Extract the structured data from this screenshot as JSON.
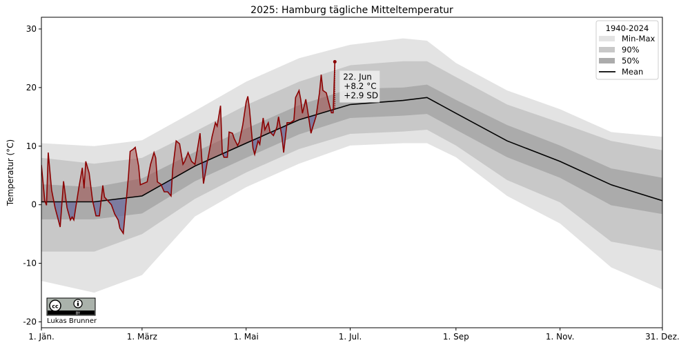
{
  "chart_data": {
    "type": "area",
    "title": "2025: Hamburg tägliche Mitteltemperatur",
    "xlabel": "",
    "ylabel": "Temperatur (°C)",
    "year": 2025,
    "ylim": [
      -21,
      32
    ],
    "yticks": [
      -20,
      -10,
      0,
      10,
      20,
      30
    ],
    "xticks": [
      {
        "date": "01-01",
        "label": "1. Jän."
      },
      {
        "date": "03-01",
        "label": "1. März"
      },
      {
        "date": "05-01",
        "label": "1. Mai"
      },
      {
        "date": "07-01",
        "label": "1. Jul."
      },
      {
        "date": "09-01",
        "label": "1. Sep"
      },
      {
        "date": "11-01",
        "label": "1. Nov."
      },
      {
        "date": "12-31",
        "label": "31. Dez."
      }
    ],
    "grid": false,
    "legend": {
      "title": "1940-2024",
      "placement": "top-right",
      "entries": [
        {
          "label": "Min-Max",
          "color": "#e3e3e3"
        },
        {
          "label": "90%",
          "color": "#c8c8c8"
        },
        {
          "label": "50%",
          "color": "#ababab"
        },
        {
          "label": "Mean",
          "color": "#000000"
        }
      ]
    },
    "climatology": {
      "dates": [
        "01-01",
        "02-01",
        "03-01",
        "04-01",
        "05-01",
        "06-01",
        "07-01",
        "08-01",
        "08-15",
        "09-01",
        "10-01",
        "11-01",
        "12-01",
        "12-31"
      ],
      "mean": [
        0.5,
        0.5,
        1.5,
        6.6,
        10.5,
        14.5,
        17.1,
        17.8,
        18.3,
        15.6,
        10.9,
        7.4,
        3.4,
        0.7
      ],
      "p25": [
        -2.5,
        -2.5,
        -1.5,
        4.0,
        8.0,
        12.0,
        14.8,
        15.2,
        15.5,
        12.8,
        8.1,
        4.6,
        -0.1,
        -1.6
      ],
      "p75": [
        3.5,
        3.0,
        4.5,
        9.0,
        13.0,
        17.0,
        19.8,
        20.0,
        20.5,
        17.9,
        13.6,
        10.1,
        6.2,
        4.6
      ],
      "p05": [
        -8.0,
        -8.0,
        -5.0,
        1.0,
        5.5,
        9.5,
        12.1,
        12.5,
        12.8,
        10.1,
        4.2,
        0.4,
        -6.3,
        -7.9
      ],
      "p95": [
        8.0,
        7.0,
        8.0,
        12.5,
        17.0,
        21.0,
        23.8,
        24.5,
        24.5,
        21.8,
        17.1,
        14.0,
        10.9,
        9.3
      ],
      "min": [
        -13.0,
        -15.0,
        -12.0,
        -2.0,
        3.0,
        7.0,
        10.1,
        10.5,
        10.5,
        8.1,
        1.5,
        -3.2,
        -10.7,
        -14.5
      ],
      "max": [
        10.5,
        10.0,
        11.0,
        16.0,
        21.0,
        25.0,
        27.3,
        28.4,
        28.0,
        24.2,
        19.5,
        16.3,
        12.4,
        11.6
      ]
    },
    "observed": {
      "color": "#8b0000",
      "above_mean_fill": "#a0504f",
      "below_mean_fill": "#6c6c9c",
      "dates": [
        "01-01",
        "01-03",
        "01-04",
        "01-05",
        "01-07",
        "01-09",
        "01-12",
        "01-14",
        "01-16",
        "01-18",
        "01-19",
        "01-20",
        "01-23",
        "01-25",
        "01-26",
        "01-27",
        "01-29",
        "01-31",
        "02-02",
        "02-04",
        "02-06",
        "02-07",
        "02-11",
        "02-13",
        "02-15",
        "02-16",
        "02-18",
        "02-21",
        "02-22",
        "02-24",
        "02-25",
        "02-27",
        "02-28",
        "03-04",
        "03-06",
        "03-08",
        "03-09",
        "03-10",
        "03-12",
        "03-14",
        "03-16",
        "03-18",
        "03-19",
        "03-21",
        "03-23",
        "03-25",
        "03-26",
        "03-28",
        "03-30",
        "04-01",
        "04-04",
        "04-06",
        "04-08",
        "04-11",
        "04-13",
        "04-14",
        "04-16",
        "04-17",
        "04-18",
        "04-20",
        "04-21",
        "04-23",
        "04-24",
        "04-26",
        "04-27",
        "04-29",
        "05-01",
        "05-02",
        "05-03",
        "05-05",
        "05-06",
        "05-08",
        "05-09",
        "05-11",
        "05-12",
        "05-14",
        "05-15",
        "05-17",
        "05-19",
        "05-20",
        "05-22",
        "05-23",
        "05-25",
        "05-27",
        "05-29",
        "05-30",
        "06-01",
        "06-02",
        "06-03",
        "06-05",
        "06-06",
        "06-08",
        "06-09",
        "06-11",
        "06-13",
        "06-14",
        "06-15",
        "06-17",
        "06-18",
        "06-20",
        "06-21",
        "06-22"
      ],
      "values": [
        6.8,
        0.7,
        -0.1,
        8.9,
        2.5,
        -0.5,
        -3.8,
        4.0,
        -0.5,
        -2.6,
        -2.1,
        -2.6,
        3.0,
        6.3,
        2.8,
        7.4,
        5.4,
        0.7,
        -1.9,
        -1.9,
        3.3,
        1.3,
        0.0,
        -1.6,
        -2.6,
        -4.0,
        -4.9,
        4.8,
        9.1,
        9.5,
        9.8,
        6.6,
        3.4,
        3.9,
        6.9,
        8.9,
        8.0,
        3.9,
        3.5,
        2.2,
        2.2,
        1.5,
        6.2,
        10.9,
        10.4,
        6.9,
        7.4,
        8.9,
        7.4,
        6.9,
        12.2,
        3.6,
        6.9,
        11.6,
        14.0,
        13.4,
        16.9,
        8.9,
        8.1,
        8.1,
        12.4,
        12.2,
        11.3,
        10.1,
        10.7,
        13.6,
        17.5,
        18.5,
        16.3,
        9.7,
        8.6,
        10.9,
        10.3,
        14.8,
        12.8,
        14.0,
        12.4,
        11.8,
        13.2,
        15.0,
        11.6,
        8.9,
        14.0,
        14.0,
        14.4,
        18.3,
        19.5,
        18.0,
        15.6,
        18.0,
        16.2,
        12.2,
        13.2,
        15.1,
        19.1,
        22.2,
        19.5,
        19.1,
        17.9,
        15.7,
        15.7,
        24.4
      ]
    },
    "annotation": {
      "date": "06-22",
      "lines": [
        "22. Jun",
        "+8.2 °C",
        "+2.9 SD"
      ],
      "color": "#8b0000"
    }
  },
  "credit": {
    "author": "Lukas Brunner",
    "license_logo": "cc-by-logo",
    "license_text": "BY"
  }
}
